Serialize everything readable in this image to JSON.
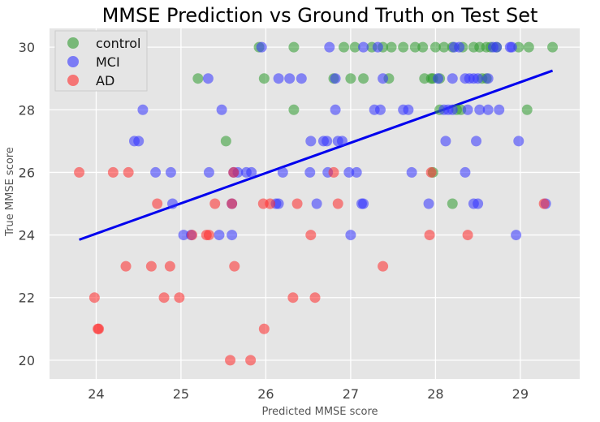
{
  "chart_data": {
    "type": "scatter",
    "title": "MMSE Prediction vs Ground Truth on Test Set",
    "xlabel": "Predicted MMSE score",
    "ylabel": "True MMSE score",
    "xlim": [
      23.45,
      29.7
    ],
    "ylim": [
      19.4,
      30.6
    ],
    "xticks": [
      24,
      25,
      26,
      27,
      28,
      29
    ],
    "yticks": [
      20,
      22,
      24,
      26,
      28,
      30
    ],
    "colors": {
      "control": "#2e9a2e",
      "MCI": "#3333ff",
      "AD": "#ff2a2a",
      "fit": "#0000ee",
      "plot_bg": "#e5e5e5",
      "grid": "#ffffff"
    },
    "legend": {
      "location": "top-left",
      "entries": [
        "control",
        "MCI",
        "AD"
      ]
    },
    "series": [
      {
        "name": "control",
        "color": "#2e9a2e",
        "points": [
          [
            25.92,
            30
          ],
          [
            26.33,
            30
          ],
          [
            26.92,
            30
          ],
          [
            27.05,
            30
          ],
          [
            27.25,
            30
          ],
          [
            27.38,
            30
          ],
          [
            27.48,
            30
          ],
          [
            27.62,
            30
          ],
          [
            27.76,
            30
          ],
          [
            27.85,
            30
          ],
          [
            28.0,
            30
          ],
          [
            28.2,
            30
          ],
          [
            28.32,
            30
          ],
          [
            28.52,
            30
          ],
          [
            28.6,
            30
          ],
          [
            28.72,
            30
          ],
          [
            28.98,
            30
          ],
          [
            29.1,
            30
          ],
          [
            29.38,
            30
          ],
          [
            28.1,
            30
          ],
          [
            28.45,
            30
          ],
          [
            28.65,
            30
          ],
          [
            25.2,
            29
          ],
          [
            25.98,
            29
          ],
          [
            26.8,
            29
          ],
          [
            27.0,
            29
          ],
          [
            27.15,
            29
          ],
          [
            27.45,
            29
          ],
          [
            27.87,
            29
          ],
          [
            27.95,
            29
          ],
          [
            27.97,
            29
          ],
          [
            28.05,
            29
          ],
          [
            28.55,
            29
          ],
          [
            28.6,
            29
          ],
          [
            26.33,
            28
          ],
          [
            28.05,
            28
          ],
          [
            28.25,
            28
          ],
          [
            28.3,
            28
          ],
          [
            29.08,
            28
          ],
          [
            25.53,
            27
          ],
          [
            27.97,
            26
          ],
          [
            28.2,
            25
          ]
        ]
      },
      {
        "name": "MCI",
        "color": "#3333ff",
        "points": [
          [
            25.95,
            30
          ],
          [
            26.75,
            30
          ],
          [
            27.15,
            30
          ],
          [
            27.32,
            30
          ],
          [
            28.22,
            30
          ],
          [
            28.28,
            30
          ],
          [
            28.68,
            30
          ],
          [
            28.72,
            30
          ],
          [
            28.88,
            30
          ],
          [
            28.9,
            30
          ],
          [
            25.32,
            29
          ],
          [
            26.15,
            29
          ],
          [
            26.28,
            29
          ],
          [
            26.42,
            29
          ],
          [
            26.82,
            29
          ],
          [
            27.38,
            29
          ],
          [
            28.03,
            29
          ],
          [
            28.2,
            29
          ],
          [
            28.35,
            29
          ],
          [
            28.4,
            29
          ],
          [
            28.45,
            29
          ],
          [
            28.5,
            29
          ],
          [
            28.62,
            29
          ],
          [
            24.55,
            28
          ],
          [
            25.48,
            28
          ],
          [
            26.82,
            28
          ],
          [
            27.28,
            28
          ],
          [
            27.35,
            28
          ],
          [
            27.62,
            28
          ],
          [
            27.68,
            28
          ],
          [
            28.1,
            28
          ],
          [
            28.15,
            28
          ],
          [
            28.2,
            28
          ],
          [
            28.38,
            28
          ],
          [
            28.52,
            28
          ],
          [
            28.62,
            28
          ],
          [
            28.75,
            28
          ],
          [
            24.45,
            27
          ],
          [
            24.5,
            27
          ],
          [
            26.53,
            27
          ],
          [
            26.68,
            27
          ],
          [
            26.72,
            27
          ],
          [
            26.85,
            27
          ],
          [
            26.9,
            27
          ],
          [
            28.12,
            27
          ],
          [
            28.48,
            27
          ],
          [
            28.98,
            27
          ],
          [
            24.7,
            26
          ],
          [
            24.88,
            26
          ],
          [
            25.33,
            26
          ],
          [
            25.62,
            26
          ],
          [
            25.67,
            26
          ],
          [
            25.77,
            26
          ],
          [
            25.83,
            26
          ],
          [
            26.2,
            26
          ],
          [
            26.52,
            26
          ],
          [
            26.73,
            26
          ],
          [
            26.98,
            26
          ],
          [
            27.07,
            26
          ],
          [
            27.72,
            26
          ],
          [
            28.35,
            26
          ],
          [
            24.9,
            25
          ],
          [
            26.12,
            25
          ],
          [
            26.15,
            25
          ],
          [
            26.6,
            25
          ],
          [
            27.13,
            25
          ],
          [
            27.15,
            25
          ],
          [
            27.92,
            25
          ],
          [
            28.45,
            25
          ],
          [
            28.5,
            25
          ],
          [
            29.3,
            25
          ],
          [
            25.6,
            25
          ],
          [
            25.03,
            24
          ],
          [
            25.12,
            24
          ],
          [
            25.45,
            24
          ],
          [
            25.6,
            24
          ],
          [
            27.0,
            24
          ],
          [
            28.95,
            24
          ]
        ]
      },
      {
        "name": "AD",
        "color": "#ff2a2a",
        "points": [
          [
            23.8,
            26
          ],
          [
            24.2,
            26
          ],
          [
            24.38,
            26
          ],
          [
            25.62,
            26
          ],
          [
            26.8,
            26
          ],
          [
            27.95,
            26
          ],
          [
            24.72,
            25
          ],
          [
            25.4,
            25
          ],
          [
            25.6,
            25
          ],
          [
            25.97,
            25
          ],
          [
            26.05,
            25
          ],
          [
            26.37,
            25
          ],
          [
            26.85,
            25
          ],
          [
            29.28,
            25
          ],
          [
            25.13,
            24
          ],
          [
            25.3,
            24
          ],
          [
            25.33,
            24
          ],
          [
            26.53,
            24
          ],
          [
            27.93,
            24
          ],
          [
            28.38,
            24
          ],
          [
            24.35,
            23
          ],
          [
            24.65,
            23
          ],
          [
            24.87,
            23
          ],
          [
            25.63,
            23
          ],
          [
            27.38,
            23
          ],
          [
            23.98,
            22
          ],
          [
            24.8,
            22
          ],
          [
            24.98,
            22
          ],
          [
            26.32,
            22
          ],
          [
            26.58,
            22
          ],
          [
            24.02,
            21
          ],
          [
            24.03,
            21
          ],
          [
            25.98,
            21
          ],
          [
            25.58,
            20
          ],
          [
            25.82,
            20
          ]
        ]
      }
    ],
    "fit_line": {
      "x": [
        23.8,
        29.38
      ],
      "y": [
        23.85,
        29.25
      ]
    }
  }
}
